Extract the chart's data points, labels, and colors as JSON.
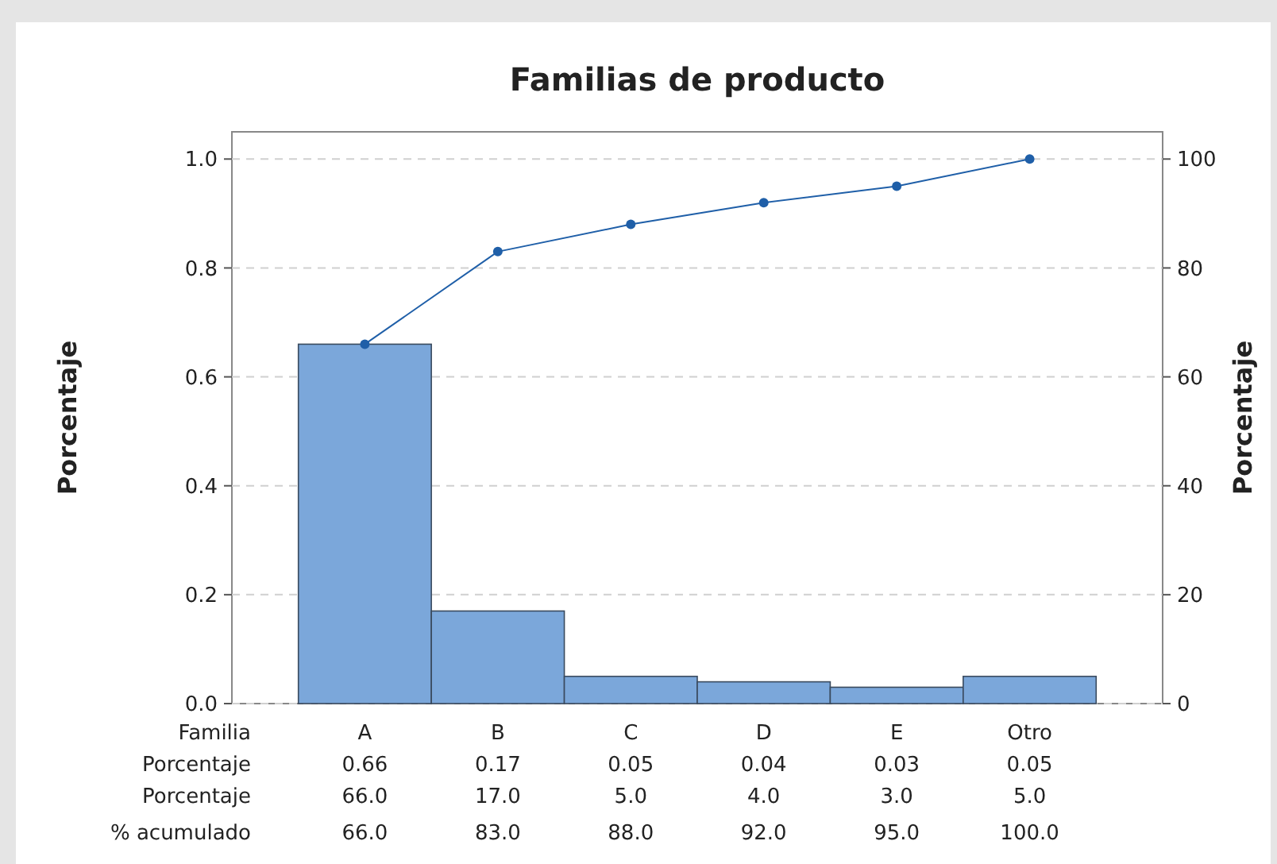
{
  "chart_data": {
    "type": "bar",
    "title": "Familias de producto",
    "xlabel": "Familia",
    "ylabel": "Porcentaje",
    "y2label": "Porcentaje",
    "categories": [
      "A",
      "B",
      "C",
      "D",
      "E",
      "Otro"
    ],
    "series": [
      {
        "color": "#7ba7da",
        "values": [
          0.66,
          0.17,
          0.05,
          0.04,
          0.03,
          0.05
        ],
        "value_labels": [
          "0.66",
          "0.17",
          "0.05",
          "0.04",
          "0.03",
          "0.05"
        ]
      },
      {
        "type": "line",
        "axis": "y2",
        "color": "#1f5fa8",
        "values": [
          66,
          83,
          88,
          92,
          95,
          100
        ],
        "value_labels": [
          "66.0",
          "83.0",
          "88.0",
          "92.0",
          "95.0",
          "100.0"
        ]
      }
    ],
    "ylim": [
      0,
      1.05
    ],
    "yticks": [
      {
        "value": 0,
        "label": "0.0"
      },
      {
        "value": 0.2,
        "label": "0.2"
      },
      {
        "value": 0.4,
        "label": "0.4"
      },
      {
        "value": 0.6,
        "label": "0.6"
      },
      {
        "value": 0.8,
        "label": "0.8"
      },
      {
        "value": 1,
        "label": "1.0"
      }
    ],
    "y2lim": [
      0,
      105
    ],
    "y2ticks": [
      0,
      20,
      40,
      60,
      80,
      100
    ],
    "grid": "y",
    "marker": "circle",
    "annotations": [
      "Porcentaje",
      "Porcentaje",
      "% acumulado",
      "66.0",
      "17.0",
      "5.0",
      "4.0",
      "3.0",
      "5.0"
    ]
  }
}
